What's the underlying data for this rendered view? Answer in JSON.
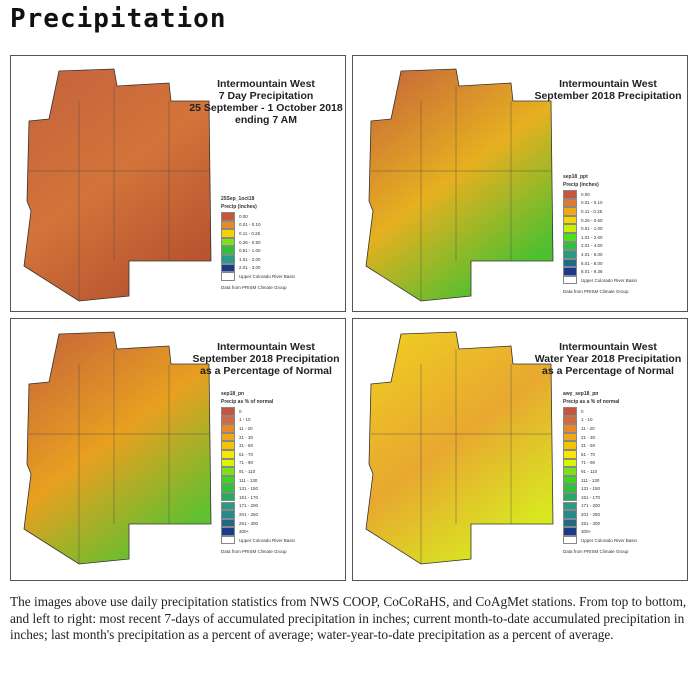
{
  "page_title": "Precipitation",
  "panels": [
    {
      "title": [
        "Intermountain West",
        "7 Day Precipitation",
        "25 September - 1 October 2018",
        "ending 7 AM"
      ],
      "legend_name": "25Sep_1oct18",
      "legend_unit": "Precip (inches)",
      "items": [
        [
          "0.00",
          "#c8553a"
        ],
        [
          "0.01 - 0.10",
          "#e8892a"
        ],
        [
          "0.11 - 0.25",
          "#f5d200"
        ],
        [
          "0.26 - 0.50",
          "#7de01a"
        ],
        [
          "0.51 - 1.00",
          "#2ec23a"
        ],
        [
          "1.01 - 2.00",
          "#2a9a8a"
        ],
        [
          "2.01 - 3.00",
          "#1a3a8a"
        ]
      ],
      "basin": "Upper Colorado River Basin",
      "source": "Data from PRISM Climate Group",
      "map_colors": [
        "#c4623c",
        "#d2743a",
        "#b85530"
      ]
    },
    {
      "title": [
        "Intermountain West",
        "September 2018 Precipitation"
      ],
      "legend_name": "sep18_ppt",
      "legend_unit": "Precip (inches)",
      "items": [
        [
          "0.00",
          "#c8553a"
        ],
        [
          "0.01 - 0.10",
          "#e07a30"
        ],
        [
          "0.11 - 0.25",
          "#f0a818"
        ],
        [
          "0.26 - 0.50",
          "#f5d800"
        ],
        [
          "0.51 - 1.00",
          "#c8f000"
        ],
        [
          "1.01 - 2.00",
          "#4ee01a"
        ],
        [
          "2.01 - 4.00",
          "#2ec23a"
        ],
        [
          "4.01 - 6.00",
          "#2a9a80"
        ],
        [
          "6.01 - 8.00",
          "#1f6a8a"
        ],
        [
          "8.01 - 9.38",
          "#1a3a8a"
        ]
      ],
      "basin": "Upper Colorado River Basin",
      "source": "Data from PRISM Climate Group",
      "map_colors": [
        "#c4623c",
        "#e6b020",
        "#4cc030"
      ]
    },
    {
      "title": [
        "Intermountain West",
        "September 2018 Precipitation",
        "as a Percentage of Normal"
      ],
      "legend_name": "sep18_pn",
      "legend_unit": "Precip as % of normal",
      "items": [
        [
          "0",
          "#c8553a"
        ],
        [
          "1 - 10",
          "#d8683a"
        ],
        [
          "11 - 20",
          "#e8882a"
        ],
        [
          "21 - 30",
          "#f0a818"
        ],
        [
          "31 - 50",
          "#f5c400"
        ],
        [
          "51 - 70",
          "#f8e800"
        ],
        [
          "71 - 90",
          "#d8f800"
        ],
        [
          "91 - 110",
          "#7de01a"
        ],
        [
          "111 - 130",
          "#3ad81a"
        ],
        [
          "131 - 150",
          "#2ec23a"
        ],
        [
          "151 - 170",
          "#28aa60"
        ],
        [
          "171 - 200",
          "#2a9a80"
        ],
        [
          "201 - 250",
          "#258a8a"
        ],
        [
          "251 - 300",
          "#1f6a8a"
        ],
        [
          "300+",
          "#1a3a8a"
        ]
      ],
      "basin": "Upper Colorado River Basin",
      "source": "Data from PRISM Climate Group",
      "map_colors": [
        "#c4623c",
        "#e8a020",
        "#60c030"
      ]
    },
    {
      "title": [
        "Intermountain West",
        "Water Year 2018 Precipitation",
        "as a Percentage of Normal"
      ],
      "legend_name": "awy_sep18_pn",
      "legend_unit": "Precip as a % of normal",
      "items": [
        [
          "0",
          "#c8553a"
        ],
        [
          "1 - 10",
          "#d8683a"
        ],
        [
          "11 - 20",
          "#e8882a"
        ],
        [
          "21 - 30",
          "#f0a818"
        ],
        [
          "31 - 50",
          "#f5c400"
        ],
        [
          "51 - 70",
          "#f8e800"
        ],
        [
          "71 - 90",
          "#d8f800"
        ],
        [
          "91 - 110",
          "#7de01a"
        ],
        [
          "111 - 130",
          "#3ad81a"
        ],
        [
          "131 - 150",
          "#2ec23a"
        ],
        [
          "151 - 170",
          "#28aa60"
        ],
        [
          "171 - 200",
          "#2a9a80"
        ],
        [
          "201 - 250",
          "#258a8a"
        ],
        [
          "251 - 300",
          "#1f6a8a"
        ],
        [
          "300+",
          "#1a3a8a"
        ]
      ],
      "basin": "Upper Colorado River Basin",
      "source": "Data from PRISM Climate Group",
      "map_colors": [
        "#f0d020",
        "#e8a830",
        "#d8e820"
      ]
    }
  ],
  "caption": "The images above use daily precipitation statistics from NWS COOP, CoCoRaHS, and CoAgMet stations. From top to bottom, and left to right: most recent 7-days of accumulated precipitation in inches; current month-to-date accumulated precipitation in inches; last month's precipitation as a percent of average; water-year-to-date precipitation as a percent of average."
}
